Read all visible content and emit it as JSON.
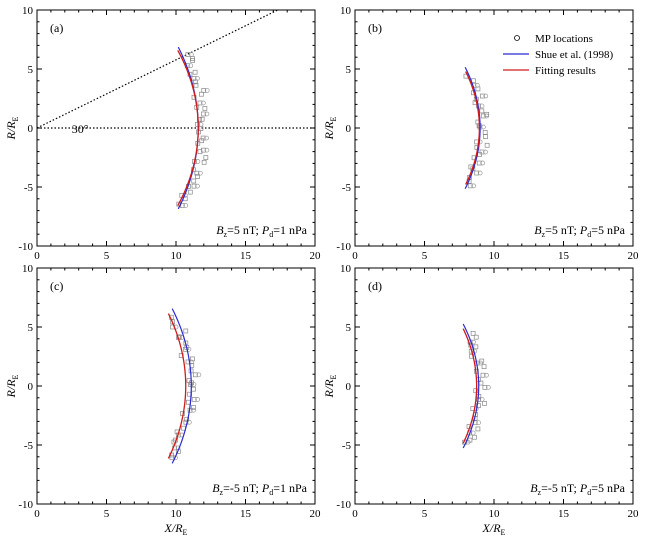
{
  "chart_data": [
    {
      "panel": "(a)",
      "type": "scatter",
      "xlim": [
        0,
        20
      ],
      "ylim": [
        -10,
        10
      ],
      "xticks": [
        0,
        5,
        10,
        15,
        20
      ],
      "yticks": [
        -10,
        -5,
        0,
        5,
        10
      ],
      "xlabel_show": false,
      "ylabel_show": true,
      "annotation": {
        "b": "B",
        "bs": "z",
        "bv": "=5 nT; ",
        "p": "P",
        "ps": "d",
        "pv": "=1 nPa"
      },
      "shue": {
        "r0": 11.6,
        "alpha": 0.62,
        "color": "#2b2bd0"
      },
      "fit": {
        "r0": 11.6,
        "alpha": 0.48,
        "color": "#d01c1c",
        "rmax": 6.7
      },
      "mp_x_offset": 0.15,
      "mp_count": 40,
      "angle_lines": {
        "label": "30°",
        "angle_deg": 30
      }
    },
    {
      "panel": "(b)",
      "type": "scatter",
      "xlim": [
        0,
        20
      ],
      "ylim": [
        -10,
        10
      ],
      "xticks": [
        0,
        5,
        10,
        15,
        20
      ],
      "yticks": [
        -10,
        -5,
        0,
        5,
        10
      ],
      "xlabel_show": false,
      "ylabel_show": true,
      "annotation": {
        "b": "B",
        "bs": "z",
        "bv": "=5 nT; ",
        "p": "P",
        "ps": "d",
        "pv": "=5 nPa"
      },
      "shue": {
        "r0": 9.0,
        "alpha": 0.58,
        "color": "#2b2bd0"
      },
      "fit": {
        "r0": 8.95,
        "alpha": 0.5,
        "color": "#d01c1c",
        "rmax": 4.9
      },
      "mp_x_offset": 0.1,
      "mp_count": 30
    },
    {
      "panel": "(c)",
      "type": "scatter",
      "xlim": [
        0,
        20
      ],
      "ylim": [
        -10,
        10
      ],
      "xticks": [
        0,
        5,
        10,
        15,
        20
      ],
      "yticks": [
        -10,
        -5,
        0,
        5,
        10
      ],
      "xlabel_show": true,
      "ylabel_show": true,
      "annotation": {
        "b": "B",
        "bs": "z",
        "bv": "=-5 nT; ",
        "p": "P",
        "ps": "d",
        "pv": "=1 nPa"
      },
      "shue": {
        "r0": 11.1,
        "alpha": 0.62,
        "color": "#2b2bd0"
      },
      "fit": {
        "r0": 10.7,
        "alpha": 0.62,
        "color": "#d01c1c",
        "rmax": 6.3
      },
      "mp_x_offset": 0.12,
      "mp_count": 36
    },
    {
      "panel": "(d)",
      "type": "scatter",
      "xlim": [
        0,
        20
      ],
      "ylim": [
        -10,
        10
      ],
      "xticks": [
        0,
        5,
        10,
        15,
        20
      ],
      "yticks": [
        -10,
        -5,
        0,
        5,
        10
      ],
      "xlabel_show": true,
      "ylabel_show": true,
      "annotation": {
        "b": "B",
        "bs": "z",
        "bv": "=-5 nT; ",
        "p": "P",
        "ps": "d",
        "pv": "=5 nPa"
      },
      "shue": {
        "r0": 8.9,
        "alpha": 0.6,
        "color": "#2b2bd0"
      },
      "fit": {
        "r0": 8.75,
        "alpha": 0.6,
        "color": "#d01c1c",
        "rmax": 5.0
      },
      "mp_x_offset": 0.1,
      "mp_count": 30
    }
  ],
  "axis_labels": {
    "x_main": "X/R",
    "x_sub": "E",
    "y_main": "R/R",
    "y_sub": "E"
  },
  "legend": {
    "items": [
      {
        "label": "MP locations",
        "kind": "marker",
        "color": "#000000"
      },
      {
        "label": "Shue et al. (1998)",
        "kind": "line",
        "color": "#2b2bd0"
      },
      {
        "label": "Fitting results",
        "kind": "line",
        "color": "#d01c1c"
      }
    ]
  }
}
